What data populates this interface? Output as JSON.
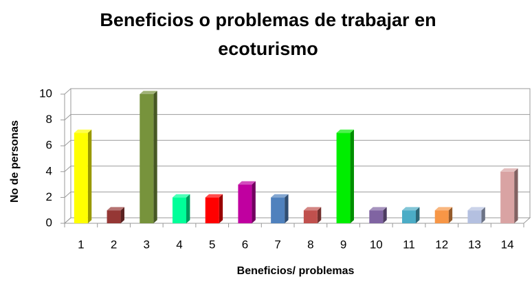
{
  "chart_data": {
    "type": "bar",
    "title": "Beneficios o problemas de trabajar  en ecoturismo",
    "x_label": "Beneficios/ problemas",
    "y_label": "No de personas",
    "categories": [
      "1",
      "2",
      "3",
      "4",
      "5",
      "6",
      "7",
      "8",
      "9",
      "10",
      "11",
      "12",
      "13",
      "14"
    ],
    "values": [
      7,
      1,
      10,
      2,
      2,
      3,
      2,
      1,
      7,
      1,
      1,
      1,
      1,
      4
    ],
    "colors": [
      "#ffff00",
      "#953735",
      "#77933c",
      "#00ff99",
      "#ff0000",
      "#c000a0",
      "#4f81bd",
      "#c0504d",
      "#00ee00",
      "#8064a2",
      "#4bacc6",
      "#f79646",
      "#b4c0e0",
      "#d9a3a3"
    ],
    "ylim": [
      0,
      10
    ],
    "yticks": [
      0,
      2,
      4,
      6,
      8,
      10
    ],
    "grid": true
  }
}
